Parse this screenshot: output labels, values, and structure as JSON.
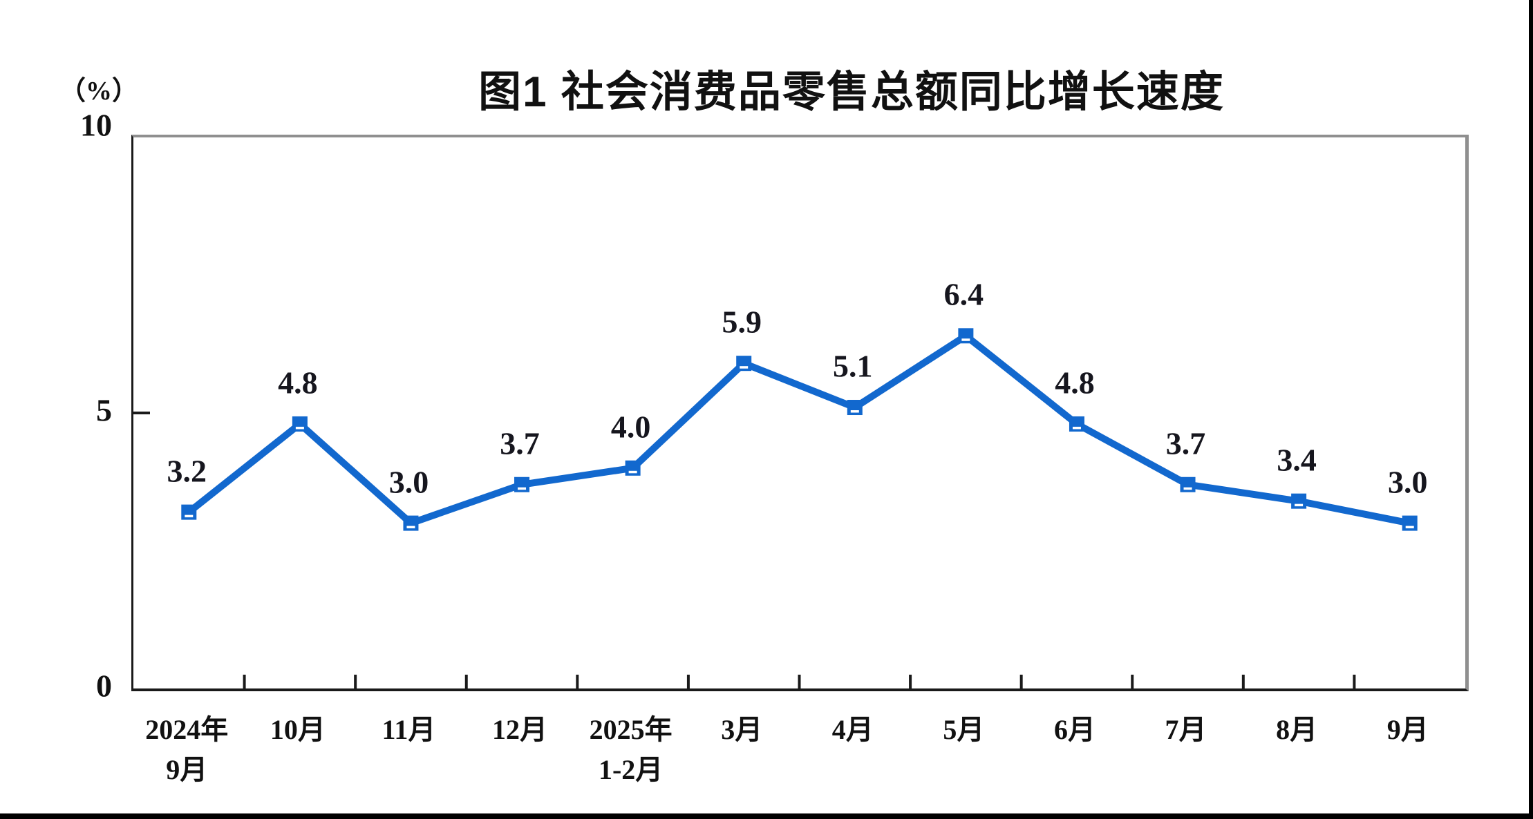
{
  "figure": {
    "title": "图1 社会消费品零售总额同比增长速度",
    "unit_label": "（%）"
  },
  "chart_data": {
    "type": "line",
    "title": "图1 社会消费品零售总额同比增长速度",
    "unit": "（%）",
    "xlabel": "",
    "ylabel": "（%）",
    "ylim": [
      0,
      10
    ],
    "yticks": [
      0,
      5,
      10
    ],
    "grid": false,
    "legend": "none",
    "categories": [
      [
        "2024年",
        "9月"
      ],
      [
        "10月"
      ],
      [
        "11月"
      ],
      [
        "12月"
      ],
      [
        "2025年",
        "1-2月"
      ],
      [
        "3月"
      ],
      [
        "4月"
      ],
      [
        "5月"
      ],
      [
        "6月"
      ],
      [
        "7月"
      ],
      [
        "8月"
      ],
      [
        "9月"
      ]
    ],
    "values": [
      3.2,
      4.8,
      3.0,
      3.7,
      4.0,
      5.9,
      5.1,
      6.4,
      4.8,
      3.7,
      3.4,
      3.0
    ],
    "data_labels": [
      "3.2",
      "4.8",
      "3.0",
      "3.7",
      "4.0",
      "5.9",
      "5.1",
      "6.4",
      "4.8",
      "3.7",
      "3.4",
      "3.0"
    ],
    "line_color": "#1268CE",
    "marker_color": "#1268CE",
    "axis_color": "#1a1a1a",
    "text_color": "#111111"
  }
}
